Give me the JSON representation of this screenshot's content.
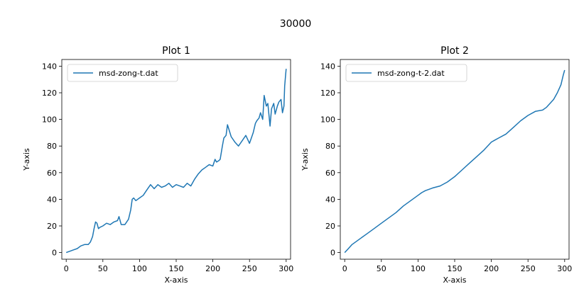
{
  "figure": {
    "suptitle": "30000"
  },
  "chart_data": [
    {
      "type": "line",
      "title": "Plot 1",
      "xlabel": "X-axis",
      "ylabel": "Y-axis",
      "xlim": [
        -6,
        306
      ],
      "ylim": [
        -5,
        145
      ],
      "xticks": [
        0,
        50,
        100,
        150,
        200,
        250,
        300
      ],
      "yticks": [
        0,
        20,
        40,
        60,
        80,
        100,
        120,
        140
      ],
      "legend_position": "top-left",
      "series": [
        {
          "name": "msd-zong-t.dat",
          "color": "#1f77b4",
          "x": [
            0,
            5,
            10,
            15,
            20,
            25,
            30,
            33,
            36,
            38,
            40,
            42,
            44,
            46,
            50,
            55,
            60,
            65,
            70,
            72,
            75,
            80,
            85,
            88,
            90,
            92,
            95,
            100,
            105,
            110,
            115,
            120,
            125,
            130,
            135,
            140,
            145,
            150,
            155,
            160,
            165,
            170,
            175,
            180,
            185,
            190,
            195,
            200,
            203,
            205,
            208,
            210,
            213,
            215,
            218,
            220,
            225,
            230,
            235,
            240,
            245,
            250,
            255,
            258,
            260,
            263,
            265,
            268,
            270,
            273,
            275,
            278,
            280,
            283,
            285,
            288,
            290,
            293,
            295,
            297,
            298,
            299,
            300
          ],
          "y": [
            0,
            1,
            2,
            3,
            5,
            6,
            6,
            8,
            12,
            18,
            23,
            22,
            18,
            19,
            20,
            22,
            21,
            23,
            24,
            27,
            21,
            21,
            25,
            32,
            40,
            41,
            39,
            41,
            43,
            47,
            51,
            48,
            51,
            49,
            50,
            52,
            49,
            51,
            50,
            49,
            52,
            50,
            55,
            59,
            62,
            64,
            66,
            65,
            70,
            68,
            69,
            70,
            80,
            86,
            88,
            96,
            87,
            83,
            80,
            84,
            88,
            82,
            90,
            97,
            99,
            101,
            105,
            100,
            118,
            110,
            112,
            95,
            108,
            112,
            104,
            110,
            113,
            115,
            105,
            110,
            125,
            132,
            138
          ]
        }
      ]
    },
    {
      "type": "line",
      "title": "Plot 2",
      "xlabel": "X-axis",
      "ylabel": "Y-axis",
      "xlim": [
        -6,
        306
      ],
      "ylim": [
        -5,
        145
      ],
      "xticks": [
        0,
        50,
        100,
        150,
        200,
        250,
        300
      ],
      "yticks": [
        0,
        20,
        40,
        60,
        80,
        100,
        120,
        140
      ],
      "legend_position": "top-left",
      "series": [
        {
          "name": "msd-zong-t-2.dat",
          "color": "#1f77b4",
          "x": [
            0,
            5,
            10,
            20,
            30,
            40,
            50,
            60,
            70,
            80,
            90,
            100,
            105,
            110,
            115,
            120,
            130,
            140,
            150,
            160,
            170,
            180,
            190,
            200,
            205,
            210,
            220,
            230,
            240,
            250,
            260,
            270,
            275,
            280,
            285,
            290,
            295,
            298,
            300
          ],
          "y": [
            0,
            3,
            6,
            10,
            14,
            18,
            22,
            26,
            30,
            35,
            39,
            43,
            45,
            46.5,
            47.5,
            48.5,
            50,
            53,
            57,
            62,
            67,
            72,
            77,
            83,
            84.5,
            86,
            89,
            94,
            99,
            103,
            106,
            107,
            109,
            112,
            115,
            120,
            126,
            133,
            137
          ]
        }
      ]
    }
  ]
}
